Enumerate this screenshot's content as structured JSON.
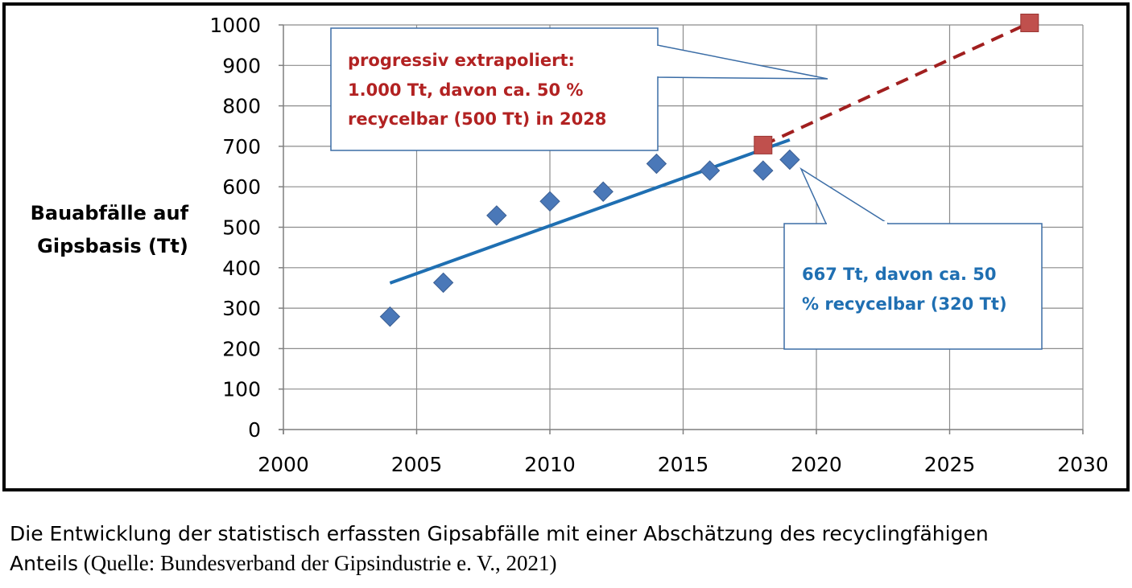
{
  "chart_data": {
    "type": "scatter",
    "ylabel": [
      "Bauabfälle auf",
      "Gipsbasis (Tt)"
    ],
    "xlim": [
      2000,
      2030
    ],
    "ylim": [
      0,
      1000
    ],
    "x_ticks": [
      2000,
      2005,
      2010,
      2015,
      2020,
      2025,
      2030
    ],
    "y_ticks": [
      0,
      100,
      200,
      300,
      400,
      500,
      600,
      700,
      800,
      900,
      1000
    ],
    "grid": true,
    "series": [
      {
        "type": "scatter",
        "marker": "diamond",
        "color": "#4a78b8",
        "points": [
          {
            "x": 2004,
            "y": 279
          },
          {
            "x": 2006,
            "y": 363
          },
          {
            "x": 2008,
            "y": 529
          },
          {
            "x": 2010,
            "y": 564
          },
          {
            "x": 2012,
            "y": 588
          },
          {
            "x": 2014,
            "y": 657
          },
          {
            "x": 2016,
            "y": 640
          },
          {
            "x": 2018,
            "y": 640
          },
          {
            "x": 2019,
            "y": 667
          }
        ]
      },
      {
        "type": "line",
        "style": "solid",
        "color": "#1f6fb2",
        "points": [
          {
            "x": 2004,
            "y": 362
          },
          {
            "x": 2019,
            "y": 716
          }
        ]
      },
      {
        "type": "scatter",
        "marker": "square",
        "color": "#c0504d",
        "points": [
          {
            "x": 2018,
            "y": 703
          },
          {
            "x": 2028,
            "y": 1005
          }
        ]
      },
      {
        "type": "line",
        "style": "dashed",
        "color": "#a11f1f",
        "points": [
          {
            "x": 2018,
            "y": 703
          },
          {
            "x": 2028,
            "y": 1005
          }
        ]
      }
    ],
    "annotations": [
      {
        "lines": [
          "progressiv extrapoliert:",
          "1.000 Tt, davon ca. 50 %",
          "recycelbar (500 Tt) in 2028"
        ],
        "color": "#b22222"
      },
      {
        "lines": [
          "667 Tt, davon ca. 50",
          "% recycelbar (320 Tt)"
        ],
        "color": "#1f6fb2"
      }
    ]
  },
  "caption": {
    "line1": "Die Entwicklung der statistisch erfassten Gipsabfälle mit einer Abschätzung des recyclingfähigen",
    "line2_sans": "Anteils",
    "line2_serif": " (Quelle: Bundesverband der Gipsindustrie e. V., 2021)"
  }
}
